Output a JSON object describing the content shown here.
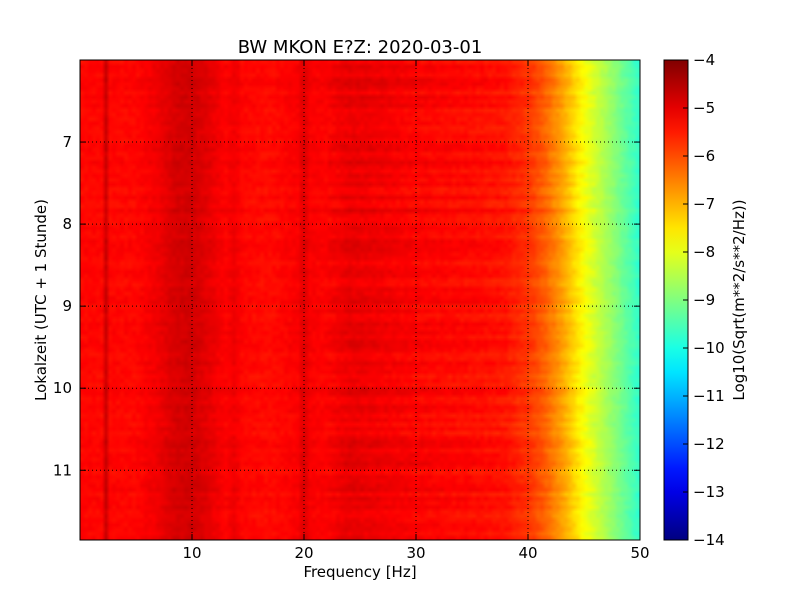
{
  "chart_data": {
    "type": "heatmap",
    "title": "BW MKON E?Z: 2020-03-01",
    "xlabel": "Frequency [Hz]",
    "ylabel": "Lokalzeit (UTC + 1 Stunde)",
    "xlim": [
      0,
      50
    ],
    "ylim": [
      11.85,
      6.0
    ],
    "x_ticks": [
      10,
      20,
      30,
      40,
      50
    ],
    "y_ticks": [
      7,
      8,
      9,
      10,
      11
    ],
    "grid": true,
    "colormap": "jet",
    "colorbar": {
      "label": "Log10(Sqrt(m**2/s**2/Hz))",
      "range": [
        -14,
        -4
      ],
      "ticks": [
        -4,
        -5,
        -6,
        -7,
        -8,
        -9,
        -10,
        -11,
        -12,
        -13,
        -14
      ],
      "tick_labels": [
        "−4",
        "−5",
        "−6",
        "−7",
        "−8",
        "−9",
        "−10",
        "−11",
        "−12",
        "−13",
        "−14"
      ]
    },
    "spectrum_profile": {
      "frequency_hz": [
        0,
        2,
        2.3,
        2.6,
        5,
        7,
        8.5,
        10,
        11.5,
        13,
        13.8,
        14.5,
        17,
        19.7,
        20,
        20.3,
        22,
        24,
        26,
        30,
        35,
        38,
        40,
        41.5,
        43,
        44,
        45,
        46,
        47,
        48,
        49,
        50
      ],
      "log10_amplitude": [
        -5.3,
        -5.3,
        -4.7,
        -5.3,
        -5.3,
        -5.1,
        -4.85,
        -4.8,
        -5.0,
        -5.25,
        -5.1,
        -5.3,
        -5.35,
        -5.2,
        -4.7,
        -5.2,
        -5.25,
        -5.05,
        -5.1,
        -5.25,
        -5.35,
        -5.45,
        -5.75,
        -6.2,
        -6.8,
        -7.3,
        -7.8,
        -8.2,
        -8.6,
        -9.0,
        -9.4,
        -9.8
      ]
    }
  }
}
